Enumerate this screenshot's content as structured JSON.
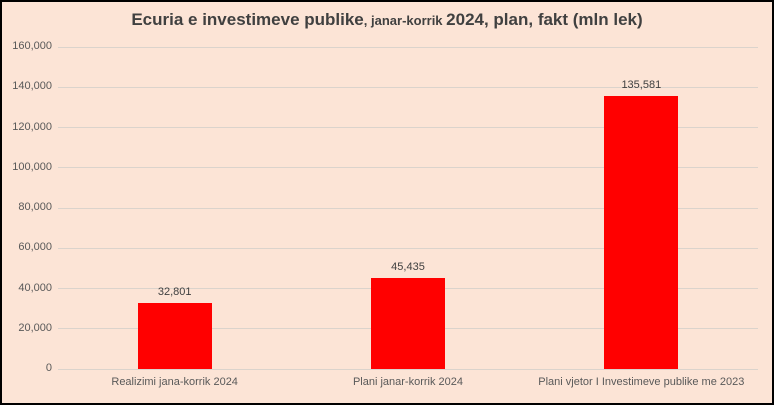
{
  "chart_data": {
    "type": "bar",
    "title": "Ecuria e investimeve publike, janar-korrik 2024, plan, fakt (mln lek)",
    "title_segments": [
      {
        "text": "Ecuria e investimeve publike",
        "size": "large"
      },
      {
        "text": ", janar-korrik ",
        "size": "small"
      },
      {
        "text": "2024, plan, fakt (mln lek)",
        "size": "large"
      }
    ],
    "categories": [
      "Realizimi jana-korrik 2024",
      "Plani janar-korrik 2024",
      "Plani vjetor I Investimeve publike me 2023"
    ],
    "values": [
      32801,
      45435,
      135581
    ],
    "value_labels": [
      "32,801",
      "45,435",
      "135,581"
    ],
    "xlabel": "",
    "ylabel": "",
    "ylim": [
      0,
      160000
    ],
    "ytick_step": 20000,
    "ytick_labels": [
      "0",
      "20,000",
      "40,000",
      "60,000",
      "80,000",
      "100,000",
      "120,000",
      "140,000",
      "160,000"
    ],
    "grid": true,
    "legend": false,
    "series_color": "#FF0000"
  },
  "colors": {
    "background": "#FCE4D6",
    "bar_fill": "#FF0000",
    "gridline": "#DBD3CC",
    "title_text": "#404040",
    "axis_text": "#595959",
    "data_label_text": "#404040",
    "frame_border": "#000000"
  }
}
